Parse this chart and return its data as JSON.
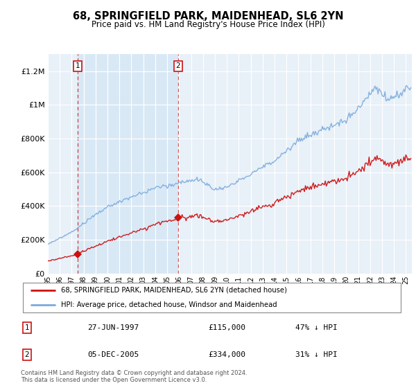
{
  "title": "68, SPRINGFIELD PARK, MAIDENHEAD, SL6 2YN",
  "subtitle": "Price paid vs. HM Land Registry's House Price Index (HPI)",
  "purchase1_year": 1997.49,
  "purchase1_price": 115000,
  "purchase1_label": "27-JUN-1997",
  "purchase1_pct": "47% ↓ HPI",
  "purchase2_year": 2005.92,
  "purchase2_price": 334000,
  "purchase2_label": "05-DEC-2005",
  "purchase2_pct": "31% ↓ HPI",
  "legend_line1": "68, SPRINGFIELD PARK, MAIDENHEAD, SL6 2YN (detached house)",
  "legend_line2": "HPI: Average price, detached house, Windsor and Maidenhead",
  "footer": "Contains HM Land Registry data © Crown copyright and database right 2024.\nThis data is licensed under the Open Government Licence v3.0.",
  "hpi_color": "#7aaadd",
  "price_color": "#cc1111",
  "shade_color": "#d8e8f5",
  "bg_color": "#e8f0f8",
  "ylim": [
    0,
    1300000
  ],
  "xlim_start": 1995.0,
  "xlim_end": 2025.5
}
